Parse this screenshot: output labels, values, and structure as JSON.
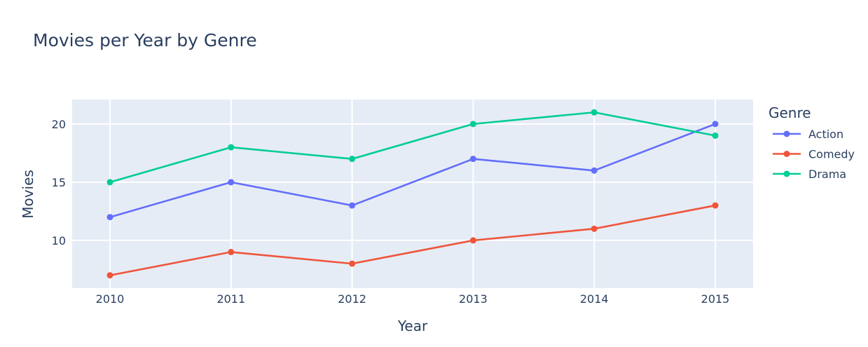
{
  "chart_data": {
    "type": "line",
    "title": "Movies per Year by Genre",
    "xlabel": "Year",
    "ylabel": "Movies",
    "x": [
      2010,
      2011,
      2012,
      2013,
      2014,
      2015
    ],
    "x_ticks": [
      "2010",
      "2011",
      "2012",
      "2013",
      "2014",
      "2015"
    ],
    "y_ticks": [
      10,
      15,
      20
    ],
    "ylim": [
      5.9,
      22.1
    ],
    "grid": true,
    "legend_title": "Genre",
    "legend_position": "right",
    "plot_bg": "#e5ecf6",
    "series": [
      {
        "name": "Action",
        "color": "#636efa",
        "values": [
          12,
          15,
          13,
          17,
          16,
          20
        ]
      },
      {
        "name": "Comedy",
        "color": "#ef553b",
        "values": [
          7,
          9,
          8,
          10,
          11,
          13
        ]
      },
      {
        "name": "Drama",
        "color": "#00cc96",
        "values": [
          15,
          18,
          17,
          20,
          21,
          19
        ]
      }
    ]
  }
}
